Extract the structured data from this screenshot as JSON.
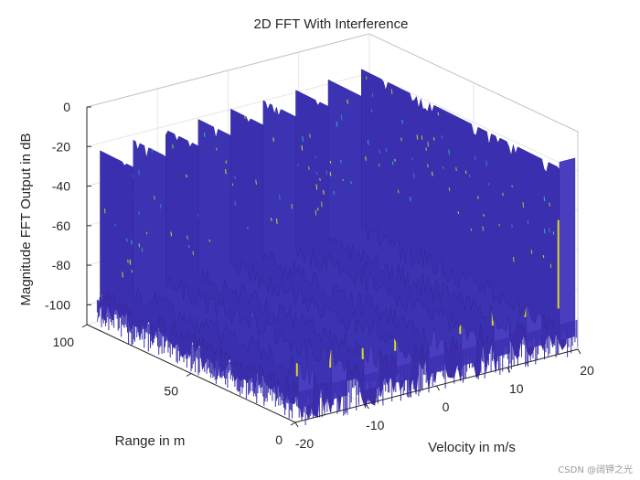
{
  "chart_data": {
    "type": "surface3d",
    "title": "2D FFT With Interference",
    "zlabel": "Magnitude FFT Output in dB",
    "xlabel": "Velocity in m/s",
    "ylabel": "Range in m",
    "x_ticks": [
      -20,
      -10,
      0,
      10,
      20
    ],
    "y_ticks": [
      0,
      50,
      100
    ],
    "z_ticks": [
      0,
      -20,
      -40,
      -60,
      -80,
      -100
    ],
    "x_tick_labels": [
      "-20",
      "-10",
      "0",
      "10",
      "20"
    ],
    "y_tick_labels": [
      "0",
      "50",
      "100"
    ],
    "z_tick_labels": [
      "0",
      "-20",
      "-40",
      "-60",
      "-80",
      "-100"
    ],
    "xlim": [
      -20,
      20
    ],
    "ylim": [
      0,
      100
    ],
    "zlim": [
      -110,
      0
    ],
    "grid": true,
    "colormap": [
      "#3d2ca8",
      "#3b3ec0",
      "#2f7fd6",
      "#27b5b0",
      "#9ec93f",
      "#d9d92a"
    ],
    "ridges": [
      {
        "velocity": -18.5,
        "peak_db": -20
      },
      {
        "velocity": -13.8,
        "peak_db": -19
      },
      {
        "velocity": -9.2,
        "peak_db": -18
      },
      {
        "velocity": -4.6,
        "peak_db": -17
      },
      {
        "velocity": 0.0,
        "peak_db": -16
      },
      {
        "velocity": 4.6,
        "peak_db": -16
      },
      {
        "velocity": 9.2,
        "peak_db": -15
      },
      {
        "velocity": 13.8,
        "peak_db": -14
      },
      {
        "velocity": 18.5,
        "peak_db": -13
      }
    ],
    "floor_db": -95
  },
  "watermark": "CSDN @阔钾之光"
}
